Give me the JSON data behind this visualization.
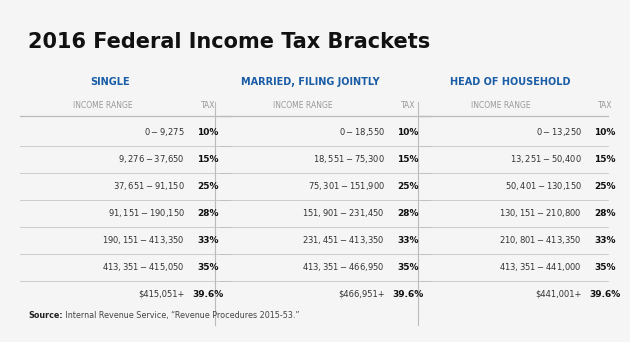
{
  "title": "2016 Federal Income Tax Brackets",
  "background_color": "#f5f5f5",
  "title_color": "#111111",
  "title_fontsize": 15,
  "header_color": "#1a5da6",
  "header_fontsize": 7,
  "subheader_color": "#999999",
  "subheader_fontsize": 5.5,
  "row_color": "#333333",
  "row_fontsize": 6,
  "tax_color": "#111111",
  "tax_fontsize": 6.5,
  "line_color": "#bbbbbb",
  "source_fontsize": 5.8,
  "columns": [
    {
      "header": "SINGLE",
      "income_ranges": [
        "$0 -   $9,275",
        "$9,276 -  $37,650",
        "$37,651 -  $91,150",
        "$91,151 - $190,150",
        "$190,151 - $413,350",
        "$413,351 - $415,050",
        "$415,051+"
      ],
      "taxes": [
        "10%",
        "15%",
        "25%",
        "28%",
        "33%",
        "35%",
        "39.6%"
      ]
    },
    {
      "header": "MARRIED, FILING JOINTLY",
      "income_ranges": [
        "$0 -   $18,550",
        "$18,551 -  $75,300",
        "$75,301 - $151,900",
        "$151,901 - $231,450",
        "$231,451 - $413,350",
        "$413,351 - $466,950",
        "$466,951+"
      ],
      "taxes": [
        "10%",
        "15%",
        "25%",
        "28%",
        "33%",
        "35%",
        "39.6%"
      ]
    },
    {
      "header": "HEAD OF HOUSEHOLD",
      "income_ranges": [
        "$0 -   $13,250",
        "$13,251 -  $50,400",
        "$50,401 - $130,150",
        "$130,151 - $210,800",
        "$210,801 - $413,350",
        "$413,351 - $441,000",
        "$441,001+"
      ],
      "taxes": [
        "10%",
        "15%",
        "25%",
        "28%",
        "33%",
        "35%",
        "39.6%"
      ]
    }
  ],
  "source_bold": "Source:",
  "source_normal": " Internal Revenue Service, “Revenue Procedures 2015-53.”"
}
